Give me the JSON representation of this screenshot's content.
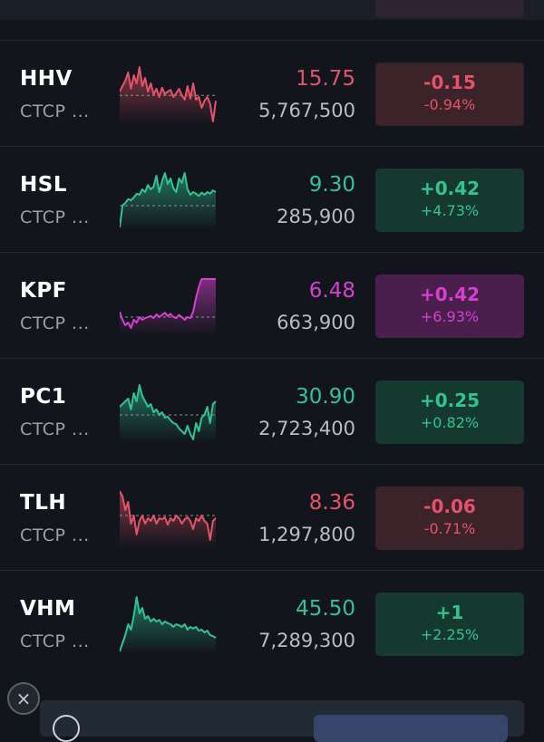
{
  "colors": {
    "down": "#e5536a",
    "up": "#2fc492",
    "ceiling": "#d63fd0",
    "down_badge_bg": "#3b2329",
    "up_badge_bg": "#16392f",
    "ceiling_badge_bg": "#4a1f4d",
    "reference_line": "#8d8f96"
  },
  "stocks": [
    {
      "ticker": "HHV",
      "company": "CTCP ...",
      "price": "15.75",
      "volume": "5,767,500",
      "change": "-0.15",
      "change_pct": "-0.94%",
      "trend": "down",
      "sparkline": [
        0.45,
        0.35,
        0.25,
        0.1,
        0.4,
        0.15,
        0.3,
        0.0,
        0.35,
        0.2,
        0.45,
        0.3,
        0.5,
        0.4,
        0.55,
        0.38,
        0.5,
        0.45,
        0.42,
        0.55,
        0.48,
        0.4,
        0.52,
        0.6,
        0.35,
        0.58,
        0.3,
        0.6,
        0.55,
        0.75,
        0.62,
        0.55,
        0.68,
        1.0,
        0.62
      ],
      "reference": 0.52
    },
    {
      "ticker": "HSL",
      "company": "CTCP ...",
      "price": "9.30",
      "volume": "285,900",
      "change": "+0.42",
      "change_pct": "+4.73%",
      "trend": "up",
      "sparkline": [
        1.0,
        0.6,
        0.55,
        0.48,
        0.5,
        0.45,
        0.38,
        0.4,
        0.3,
        0.35,
        0.22,
        0.3,
        0.25,
        0.05,
        0.35,
        0.15,
        0.0,
        0.2,
        0.1,
        0.28,
        0.35,
        0.1,
        0.18,
        0.0,
        0.3,
        0.4,
        0.35,
        0.38,
        0.42,
        0.36,
        0.4,
        0.35,
        0.38,
        0.32,
        0.35
      ],
      "reference": 0.6
    },
    {
      "ticker": "KPF",
      "company": "CTCP ...",
      "price": "6.48",
      "volume": "663,900",
      "change": "+0.42",
      "change_pct": "+6.93%",
      "trend": "ceiling",
      "sparkline": [
        0.6,
        0.75,
        0.85,
        0.8,
        0.9,
        0.75,
        0.8,
        0.7,
        0.75,
        0.72,
        0.7,
        0.68,
        0.72,
        0.65,
        0.7,
        0.66,
        0.62,
        0.68,
        0.64,
        0.7,
        0.72,
        0.66,
        0.7,
        0.75,
        0.7,
        0.72,
        0.6,
        0.35,
        0.15,
        0.0,
        0.0,
        0.0,
        0.0,
        0.0,
        0.0
      ],
      "reference": 0.7
    },
    {
      "ticker": "PC1",
      "company": "CTCP ...",
      "price": "30.90",
      "volume": "2,723,400",
      "change": "+0.25",
      "change_pct": "+0.82%",
      "trend": "up",
      "sparkline": [
        0.4,
        0.35,
        0.3,
        0.25,
        0.45,
        0.15,
        0.3,
        0.0,
        0.2,
        0.3,
        0.4,
        0.35,
        0.5,
        0.45,
        0.55,
        0.5,
        0.6,
        0.58,
        0.65,
        0.7,
        0.72,
        0.8,
        0.85,
        0.9,
        0.75,
        0.9,
        1.0,
        0.7,
        0.85,
        0.6,
        0.55,
        0.4,
        0.7,
        0.35,
        0.3
      ],
      "reference": 0.55
    },
    {
      "ticker": "TLH",
      "company": "CTCP ...",
      "price": "8.36",
      "volume": "1,297,800",
      "change": "-0.06",
      "change_pct": "-0.71%",
      "trend": "down",
      "sparkline": [
        0.0,
        0.1,
        0.35,
        0.2,
        0.6,
        0.45,
        0.8,
        0.55,
        0.45,
        0.6,
        0.5,
        0.55,
        0.45,
        0.6,
        0.5,
        0.52,
        0.48,
        0.62,
        0.5,
        0.55,
        0.45,
        0.5,
        0.6,
        0.52,
        0.48,
        0.55,
        0.7,
        0.5,
        0.55,
        0.45,
        0.55,
        0.6,
        0.9,
        0.55,
        0.5
      ],
      "reference": 0.45
    },
    {
      "ticker": "VHM",
      "company": "CTCP ...",
      "price": "45.50",
      "volume": "7,289,300",
      "change": "+1",
      "change_pct": "+2.25%",
      "trend": "up",
      "sparkline": [
        1.0,
        0.85,
        0.7,
        0.5,
        0.6,
        0.35,
        0.0,
        0.3,
        0.2,
        0.4,
        0.35,
        0.45,
        0.4,
        0.45,
        0.42,
        0.5,
        0.45,
        0.48,
        0.5,
        0.55,
        0.5,
        0.52,
        0.55,
        0.5,
        0.6,
        0.55,
        0.58,
        0.55,
        0.62,
        0.6,
        0.65,
        0.62,
        0.7,
        0.72,
        0.75
      ],
      "reference": null
    }
  ],
  "icons": {
    "close": "×"
  }
}
